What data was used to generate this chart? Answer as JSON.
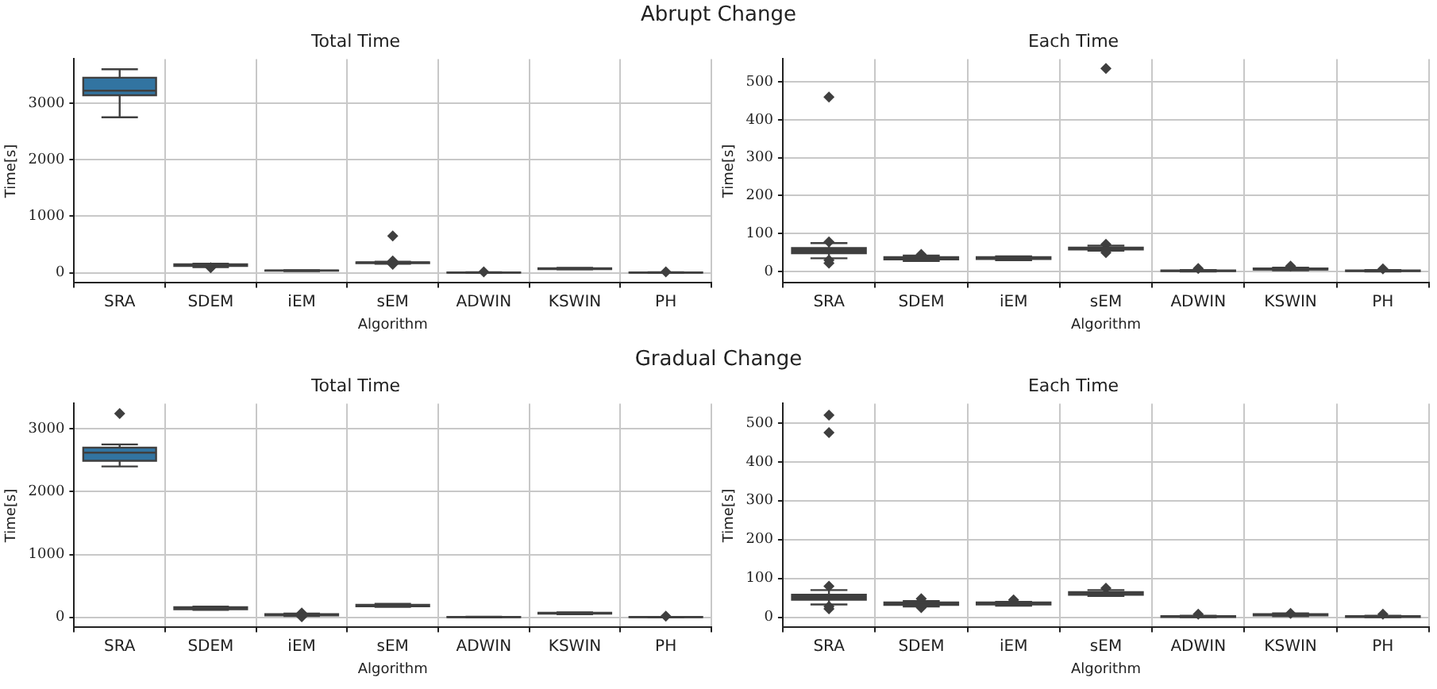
{
  "chart_data": [
    {
      "type": "box",
      "title": "Total Time",
      "xlabel": "Algorithm",
      "ylabel": "Time[s]",
      "annotations": [
        "Abrupt Change"
      ],
      "categories": [
        "SRA",
        "SDEM",
        "iEM",
        "sEM",
        "ADWIN",
        "KSWIN",
        "PH"
      ],
      "colors": [
        "#3274a1",
        "#3f3f3f",
        "#3f3f3f",
        "#3f3f3f",
        "#3f3f3f",
        "#3f3f3f",
        "#3f3f3f"
      ],
      "ylim": [
        -180,
        3780
      ],
      "yticks": [
        0,
        1000,
        2000,
        3000
      ],
      "grid": true,
      "legend": false,
      "boxes": [
        {
          "low": 2750,
          "q1": 3140,
          "median": 3220,
          "q3": 3450,
          "high": 3600
        },
        {
          "low": 100,
          "q1": 120,
          "median": 135,
          "q3": 150,
          "high": 160,
          "outliers": [
            90
          ]
        },
        {
          "low": 30,
          "q1": 35,
          "median": 38,
          "q3": 42,
          "high": 45
        },
        {
          "low": 160,
          "q1": 170,
          "median": 180,
          "q3": 185,
          "high": 195,
          "outliers": [
            650,
            210,
            150
          ]
        },
        {
          "low": 0,
          "q1": 2,
          "median": 4,
          "q3": 6,
          "high": 8,
          "outliers": [
            15
          ]
        },
        {
          "low": 60,
          "q1": 65,
          "median": 72,
          "q3": 80,
          "high": 85
        },
        {
          "low": 0,
          "q1": 2,
          "median": 4,
          "q3": 6,
          "high": 8,
          "outliers": [
            15
          ]
        }
      ]
    },
    {
      "type": "box",
      "title": "Each Time",
      "xlabel": "Algorithm",
      "ylabel": "Time[s]",
      "categories": [
        "SRA",
        "SDEM",
        "iEM",
        "sEM",
        "ADWIN",
        "KSWIN",
        "PH"
      ],
      "colors": [
        "#3f3f3f",
        "#3f3f3f",
        "#3f3f3f",
        "#3f3f3f",
        "#3f3f3f",
        "#3f3f3f",
        "#3f3f3f"
      ],
      "ylim": [
        -30,
        560
      ],
      "yticks": [
        0,
        100,
        200,
        300,
        400,
        500
      ],
      "grid": true,
      "legend": false,
      "boxes": [
        {
          "low": 35,
          "q1": 48,
          "median": 55,
          "q3": 62,
          "high": 75,
          "outliers": [
            460,
            78,
            30,
            22
          ]
        },
        {
          "low": 28,
          "q1": 32,
          "median": 35,
          "q3": 38,
          "high": 42,
          "outliers": [
            45
          ]
        },
        {
          "low": 30,
          "q1": 33,
          "median": 35,
          "q3": 38,
          "high": 40
        },
        {
          "low": 55,
          "q1": 58,
          "median": 60,
          "q3": 63,
          "high": 68,
          "outliers": [
            535,
            72,
            50
          ]
        },
        {
          "low": 0,
          "q1": 1,
          "median": 2,
          "q3": 3,
          "high": 4,
          "outliers": [
            8
          ]
        },
        {
          "low": 3,
          "q1": 5,
          "median": 6,
          "q3": 8,
          "high": 10,
          "outliers": [
            14
          ]
        },
        {
          "low": 0,
          "q1": 1,
          "median": 2,
          "q3": 3,
          "high": 4,
          "outliers": [
            7
          ]
        }
      ]
    },
    {
      "type": "box",
      "title": "Total Time",
      "xlabel": "Algorithm",
      "ylabel": "Time[s]",
      "annotations": [
        "Gradual Change"
      ],
      "categories": [
        "SRA",
        "SDEM",
        "iEM",
        "sEM",
        "ADWIN",
        "KSWIN",
        "PH"
      ],
      "colors": [
        "#3274a1",
        "#3f3f3f",
        "#3f3f3f",
        "#3f3f3f",
        "#3f3f3f",
        "#3f3f3f",
        "#3f3f3f"
      ],
      "ylim": [
        -160,
        3400
      ],
      "yticks": [
        0,
        1000,
        2000,
        3000
      ],
      "grid": true,
      "legend": false,
      "boxes": [
        {
          "low": 2400,
          "q1": 2490,
          "median": 2620,
          "q3": 2700,
          "high": 2750,
          "outliers": [
            3240
          ]
        },
        {
          "low": 120,
          "q1": 130,
          "median": 145,
          "q3": 160,
          "high": 170
        },
        {
          "low": 20,
          "q1": 30,
          "median": 40,
          "q3": 50,
          "high": 60,
          "outliers": [
            10,
            70
          ]
        },
        {
          "low": 165,
          "q1": 175,
          "median": 185,
          "q3": 200,
          "high": 215
        },
        {
          "low": 0,
          "q1": 3,
          "median": 5,
          "q3": 8,
          "high": 10
        },
        {
          "low": 50,
          "q1": 60,
          "median": 65,
          "q3": 72,
          "high": 80
        },
        {
          "low": 0,
          "q1": 2,
          "median": 4,
          "q3": 6,
          "high": 8,
          "outliers": [
            20
          ]
        }
      ]
    },
    {
      "type": "box",
      "title": "Each Time",
      "xlabel": "Algorithm",
      "ylabel": "Time[s]",
      "categories": [
        "SRA",
        "SDEM",
        "iEM",
        "sEM",
        "ADWIN",
        "KSWIN",
        "PH"
      ],
      "colors": [
        "#3f3f3f",
        "#3f3f3f",
        "#3f3f3f",
        "#3f3f3f",
        "#3f3f3f",
        "#3f3f3f",
        "#3f3f3f"
      ],
      "ylim": [
        -26,
        550
      ],
      "yticks": [
        0,
        100,
        200,
        300,
        400,
        500
      ],
      "grid": true,
      "legend": false,
      "boxes": [
        {
          "low": 33,
          "q1": 45,
          "median": 52,
          "q3": 58,
          "high": 70,
          "outliers": [
            520,
            475,
            80,
            28,
            22
          ]
        },
        {
          "low": 28,
          "q1": 32,
          "median": 35,
          "q3": 38,
          "high": 42,
          "outliers": [
            48,
            25
          ]
        },
        {
          "low": 30,
          "q1": 33,
          "median": 35,
          "q3": 38,
          "high": 40,
          "outliers": [
            45
          ]
        },
        {
          "low": 55,
          "q1": 58,
          "median": 60,
          "q3": 65,
          "high": 70,
          "outliers": [
            75
          ]
        },
        {
          "low": 0,
          "q1": 1,
          "median": 2,
          "q3": 3,
          "high": 4,
          "outliers": [
            8
          ]
        },
        {
          "low": 3,
          "q1": 5,
          "median": 6,
          "q3": 8,
          "high": 10,
          "outliers": [
            10
          ]
        },
        {
          "low": 0,
          "q1": 1,
          "median": 2,
          "q3": 3,
          "high": 4,
          "outliers": [
            8
          ]
        }
      ]
    }
  ]
}
